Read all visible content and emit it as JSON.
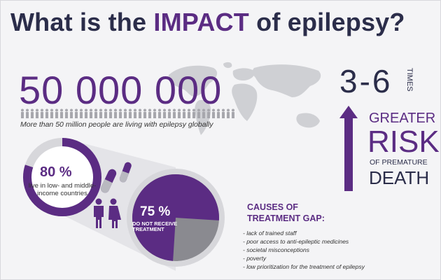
{
  "title": {
    "prefix": "What is the ",
    "accent": "IMPACT",
    "suffix": " of epilepsy?"
  },
  "people": {
    "number": "50 000 000",
    "caption": "More than 50 million people are living with epilepsy globally"
  },
  "risk": {
    "range": "3-6",
    "times": "TIMES",
    "greater": "GREATER",
    "risk": "RISK",
    "of_premature": "OF PREMATURE",
    "death": "DEATH"
  },
  "low_income": {
    "percent": "80 %",
    "label": "live in low- and middle-income countries"
  },
  "treatment": {
    "percent": "75 %",
    "label_line1": "DO NOT RECEIVE",
    "label_line2": "TREATMENT"
  },
  "causes": {
    "title_line1": "CAUSES OF",
    "title_line2": "TREATMENT GAP:",
    "items": [
      "- lack of trained staff",
      "- poor access to anti-epileptic medicines",
      "- societal misconceptions",
      "- poverty",
      "- low prioritization for the treatment of epilepsy"
    ]
  },
  "colors": {
    "brand_purple": "#5b2c83",
    "navy": "#2b2d4a",
    "grey_ring": "#d7d7db",
    "slice_grey": "#8a8a90"
  }
}
